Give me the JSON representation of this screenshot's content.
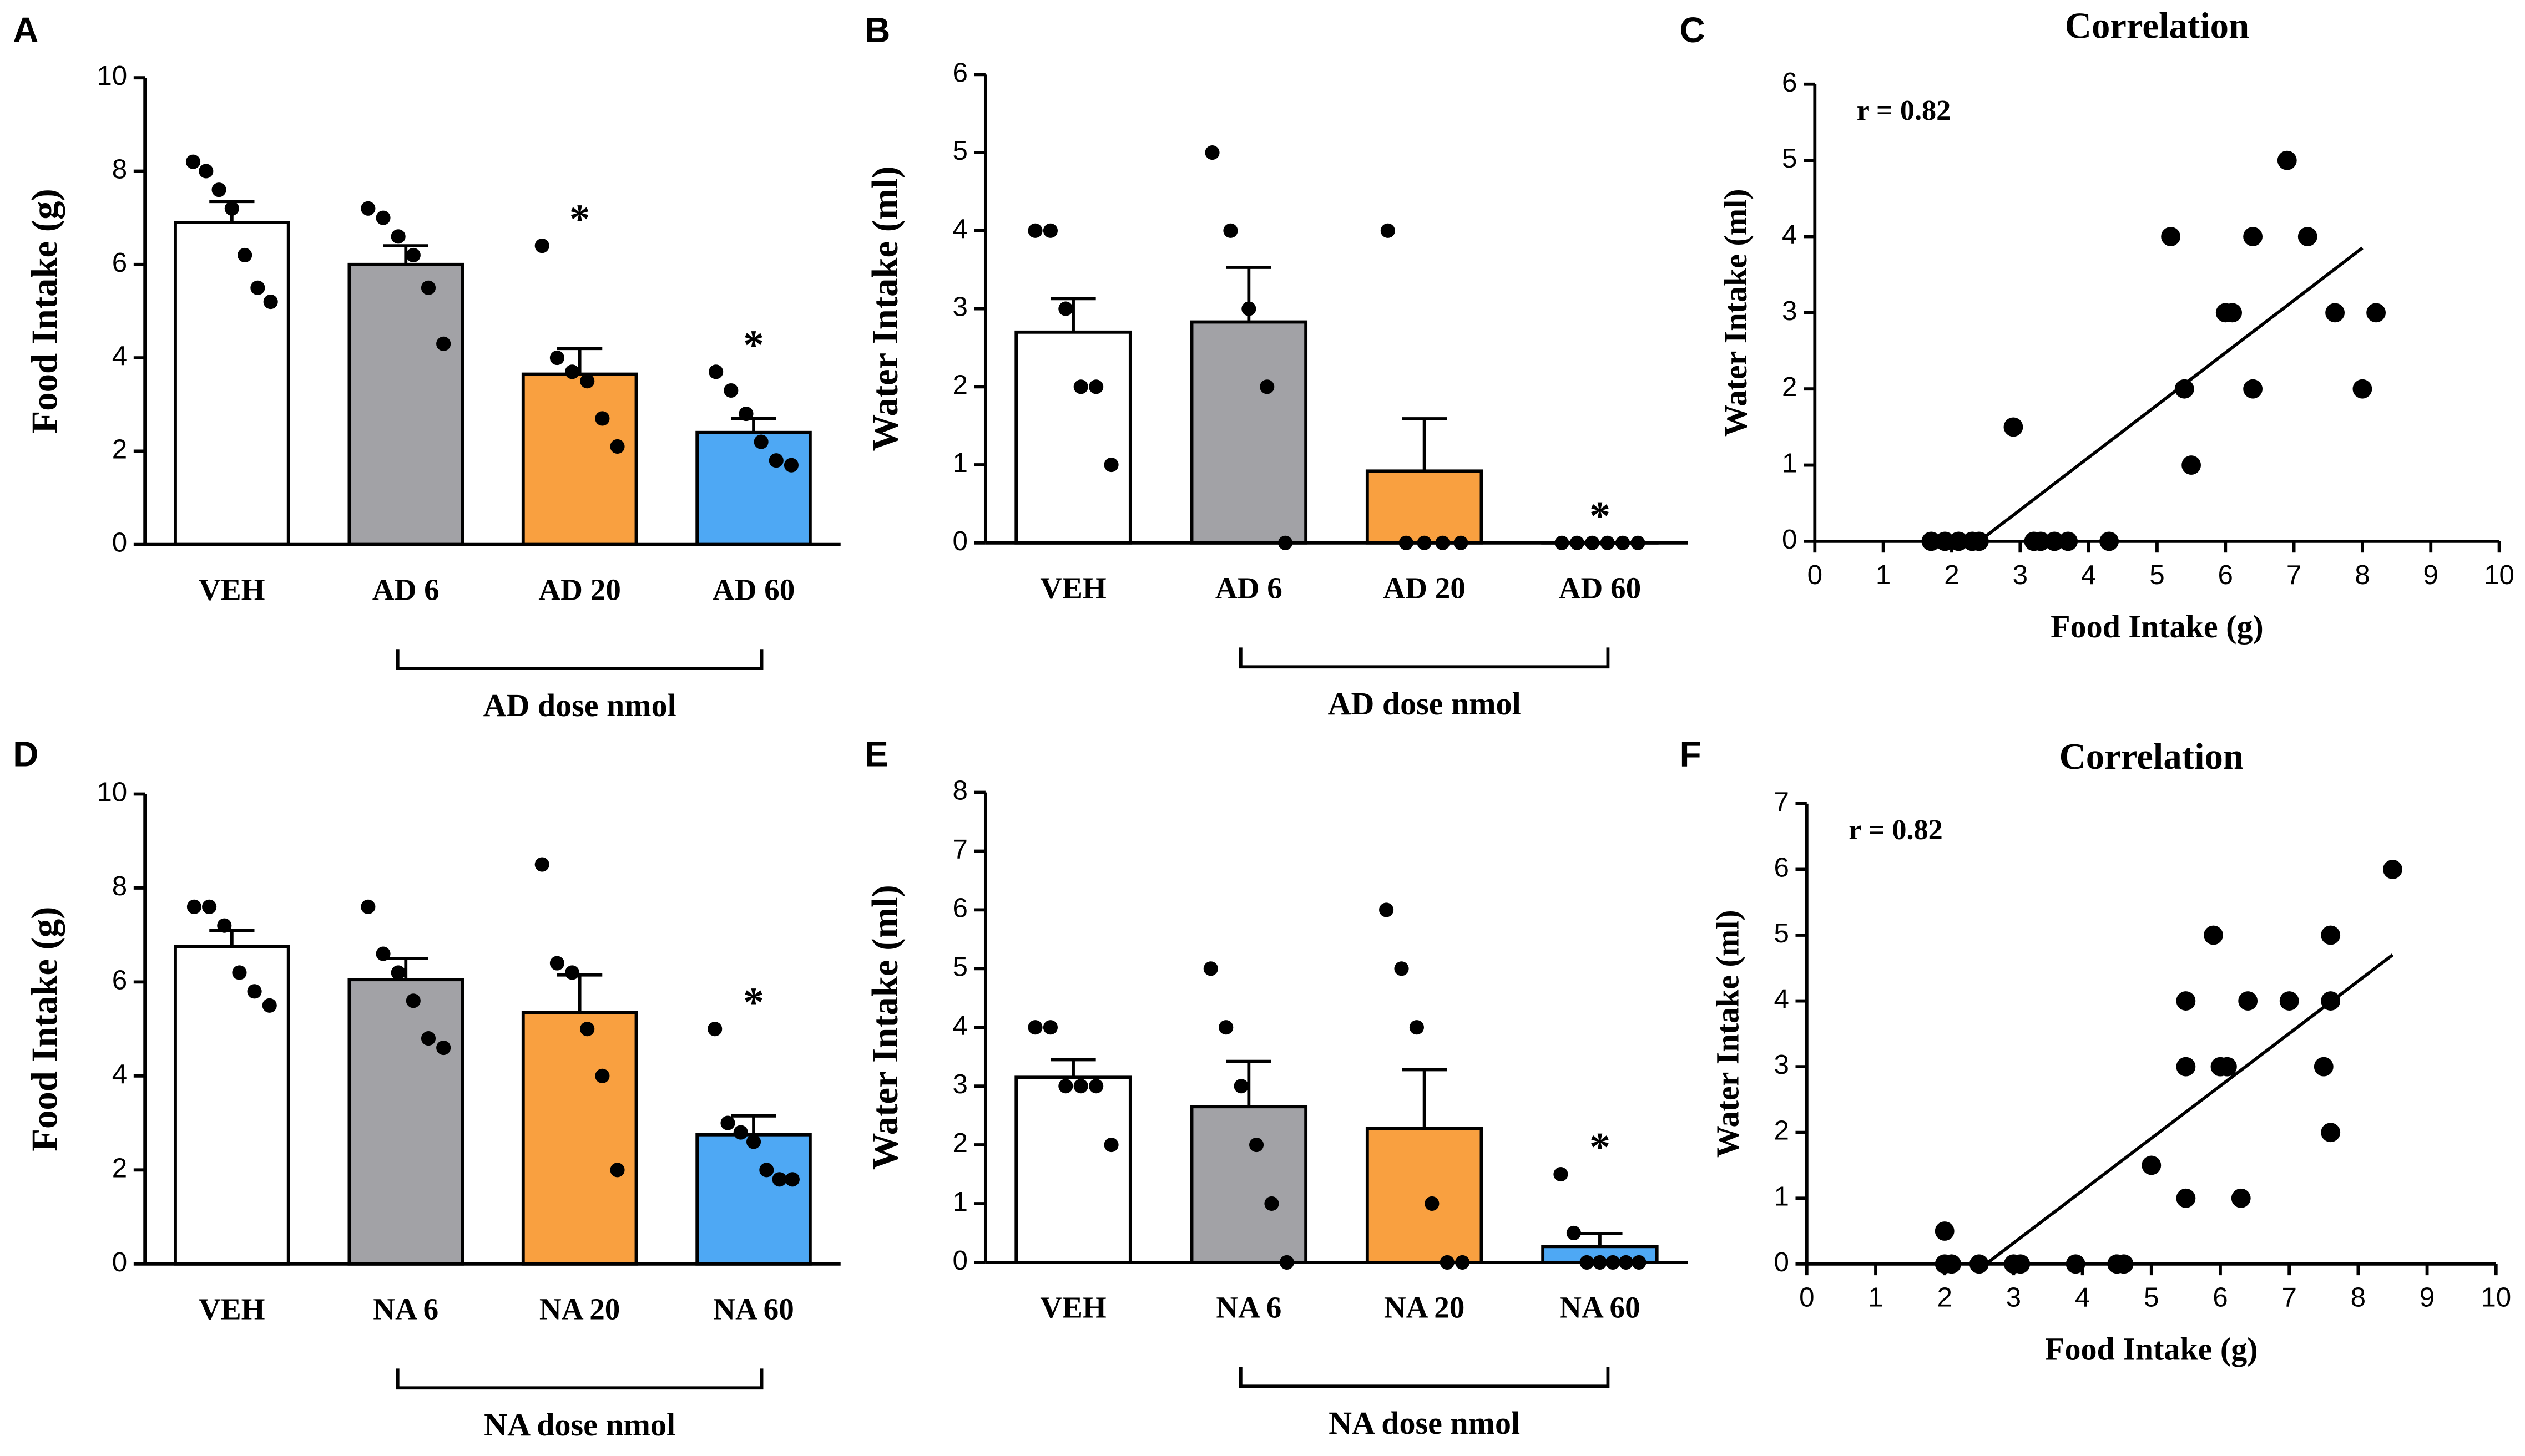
{
  "chart_data": [
    {
      "type": "bar",
      "panel": "A",
      "y_label": "Food Intake (g)",
      "categories": [
        "VEH",
        "AD 6",
        "AD 20",
        "AD 60"
      ],
      "values": [
        6.9,
        6.0,
        3.65,
        2.4
      ],
      "errors": [
        0.45,
        0.4,
        0.55,
        0.3
      ],
      "points": [
        [
          8.2,
          8.0,
          7.6,
          7.2,
          6.2,
          5.5,
          5.2
        ],
        [
          7.2,
          7.0,
          6.6,
          6.2,
          5.5,
          4.3
        ],
        [
          6.4,
          4.0,
          3.7,
          3.5,
          2.7,
          2.1
        ],
        [
          3.7,
          3.3,
          2.8,
          2.2,
          1.8,
          1.7
        ]
      ],
      "annotations": [
        null,
        null,
        "*",
        "*"
      ],
      "bracket_label": "AD dose nmol",
      "colors": [
        "#ffffff",
        "#a2a2a6",
        "#f9a040",
        "#4ea8f4"
      ],
      "ylim": [
        0,
        10
      ],
      "yticks": [
        0,
        2,
        4,
        6,
        8,
        10
      ]
    },
    {
      "type": "bar",
      "panel": "B",
      "y_label": "Water Intake (ml)",
      "categories": [
        "VEH",
        "AD 6",
        "AD 20",
        "AD 60"
      ],
      "values": [
        2.7,
        2.83,
        0.92,
        0
      ],
      "errors": [
        0.43,
        0.7,
        0.67,
        0
      ],
      "points": [
        [
          4,
          4,
          3,
          2,
          2,
          1
        ],
        [
          5,
          4,
          3,
          2,
          0
        ],
        [
          4,
          0,
          0,
          0,
          0
        ],
        [
          0,
          0,
          0,
          0,
          0,
          0
        ]
      ],
      "annotations": [
        null,
        null,
        null,
        "*"
      ],
      "bracket_label": "AD dose nmol",
      "colors": [
        "#ffffff",
        "#a2a2a6",
        "#f9a040",
        "#4ea8f4"
      ],
      "ylim": [
        0,
        6
      ],
      "yticks": [
        0,
        1,
        2,
        3,
        4,
        5,
        6
      ]
    },
    {
      "type": "scatter",
      "panel": "C",
      "title": "Correlation",
      "annotation": "r = 0.82",
      "x_label": "Food Intake (g)",
      "y_label": "Water Intake (ml)",
      "x": [
        1.7,
        1.9,
        2.1,
        2.3,
        2.4,
        2.9,
        3.2,
        3.3,
        3.5,
        3.7,
        4.3,
        5.2,
        5.4,
        5.5,
        6.0,
        6.1,
        6.4,
        6.4,
        6.9,
        7.2,
        7.6,
        8.0,
        8.2
      ],
      "y": [
        0,
        0,
        0,
        0,
        0,
        1.5,
        0,
        0,
        0,
        0,
        0,
        4,
        2,
        1,
        3,
        3,
        4,
        2,
        5,
        4,
        3,
        2,
        3
      ],
      "fit": {
        "x": [
          2.4,
          8.0
        ],
        "y": [
          0,
          3.85
        ]
      },
      "color": "#000000",
      "xlim": [
        0,
        10
      ],
      "xticks": [
        0,
        1,
        2,
        3,
        4,
        5,
        6,
        7,
        8,
        9,
        10
      ],
      "ylim": [
        0,
        6
      ],
      "yticks": [
        0,
        1,
        2,
        3,
        4,
        5,
        6
      ]
    },
    {
      "type": "bar",
      "panel": "D",
      "y_label": "Food Intake (g)",
      "categories": [
        "VEH",
        "NA 6",
        "NA 20",
        "NA 60"
      ],
      "values": [
        6.75,
        6.05,
        5.35,
        2.75
      ],
      "errors": [
        0.35,
        0.45,
        0.8,
        0.4
      ],
      "points": [
        [
          7.6,
          7.6,
          7.2,
          6.2,
          5.8,
          5.5
        ],
        [
          7.6,
          6.6,
          6.2,
          5.6,
          4.8,
          4.6
        ],
        [
          8.5,
          6.4,
          6.2,
          5.0,
          4.0,
          2.0
        ],
        [
          5.0,
          3.0,
          2.8,
          2.6,
          2.0,
          1.8,
          1.8
        ]
      ],
      "annotations": [
        null,
        null,
        null,
        "*"
      ],
      "bracket_label": "NA dose nmol",
      "colors": [
        "#ffffff",
        "#a2a2a6",
        "#f9a040",
        "#4ea8f4"
      ],
      "ylim": [
        0,
        10
      ],
      "yticks": [
        0,
        2,
        4,
        6,
        8,
        10
      ]
    },
    {
      "type": "bar",
      "panel": "E",
      "y_label": "Water Intake (ml)",
      "categories": [
        "VEH",
        "NA 6",
        "NA 20",
        "NA 60"
      ],
      "values": [
        3.15,
        2.65,
        2.28,
        0.27
      ],
      "errors": [
        0.3,
        0.77,
        1.0,
        0.22
      ],
      "points": [
        [
          4,
          4,
          3,
          3,
          3,
          2
        ],
        [
          5,
          4,
          3,
          2,
          1,
          0
        ],
        [
          6,
          5,
          4,
          1,
          0,
          0
        ],
        [
          1.5,
          0.5,
          0,
          0,
          0,
          0,
          0
        ]
      ],
      "annotations": [
        null,
        null,
        null,
        "*"
      ],
      "bracket_label": "NA dose nmol",
      "colors": [
        "#ffffff",
        "#a2a2a6",
        "#f9a040",
        "#4ea8f4"
      ],
      "ylim": [
        0,
        8
      ],
      "yticks": [
        0,
        1,
        2,
        3,
        4,
        5,
        6,
        7,
        8
      ]
    },
    {
      "type": "scatter",
      "panel": "F",
      "title": "Correlation",
      "annotation": "r = 0.82",
      "x_label": "Food Intake (g)",
      "y_label": "Water Intake (ml)",
      "x": [
        2.0,
        2.0,
        2.1,
        2.5,
        3.0,
        3.1,
        3.9,
        4.5,
        4.6,
        5.0,
        5.5,
        5.5,
        5.5,
        5.9,
        6.0,
        6.1,
        6.3,
        6.4,
        7.0,
        7.6,
        7.6,
        7.5,
        7.6,
        8.5
      ],
      "y": [
        0,
        0.5,
        0,
        0,
        0,
        0,
        0,
        0,
        0,
        1.5,
        4,
        3,
        1,
        5,
        3,
        3,
        1,
        4,
        4,
        5,
        4,
        3,
        2,
        6
      ],
      "fit": {
        "x": [
          2.6,
          8.5
        ],
        "y": [
          0,
          4.7
        ]
      },
      "color": "#000000",
      "xlim": [
        0,
        10
      ],
      "xticks": [
        0,
        1,
        2,
        3,
        4,
        5,
        6,
        7,
        8,
        9,
        10
      ],
      "ylim": [
        0,
        7
      ],
      "yticks": [
        0,
        1,
        2,
        3,
        4,
        5,
        6,
        7
      ]
    }
  ]
}
